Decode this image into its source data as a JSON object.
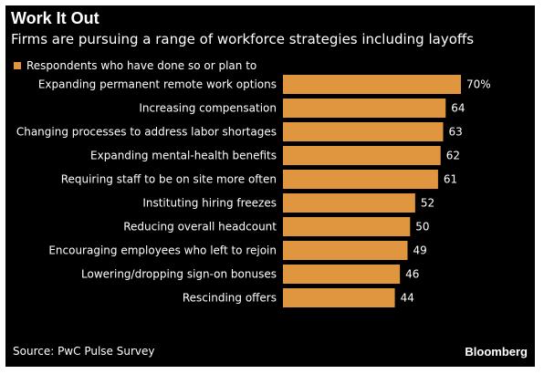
{
  "header": {
    "title": "Work It Out",
    "subtitle": "Firms are pursuing a range of workforce strategies including layoffs"
  },
  "legend": {
    "label": "Respondents who have done so or plan to"
  },
  "footer": {
    "source": "Source: PwC Pulse Survey",
    "brand": "Bloomberg"
  },
  "colors": {
    "bar": "#E0963F",
    "background": "#000000",
    "text": "#FFFFFF"
  },
  "chart_data": {
    "type": "bar",
    "orientation": "horizontal",
    "title": "Work It Out",
    "subtitle": "Firms are pursuing a range of workforce strategies including layoffs",
    "categories": [
      "Expanding permanent remote work options",
      "Increasing compensation",
      "Changing processes to address labor shortages",
      "Expanding mental-health benefits",
      "Requiring staff to be on site more often",
      "Instituting hiring freezes",
      "Reducing overall headcount",
      "Encouraging employees who left to rejoin",
      "Lowering/dropping sign-on bonuses",
      "Rescinding offers"
    ],
    "series": [
      {
        "name": "Respondents who have done so or plan to",
        "values": [
          70,
          64,
          63,
          62,
          61,
          52,
          50,
          49,
          46,
          44
        ]
      }
    ],
    "value_labels": [
      "70%",
      "64",
      "63",
      "62",
      "61",
      "52",
      "50",
      "49",
      "46",
      "44"
    ],
    "xlim": [
      0,
      70
    ],
    "grid": false,
    "legend_position": "top-left"
  }
}
